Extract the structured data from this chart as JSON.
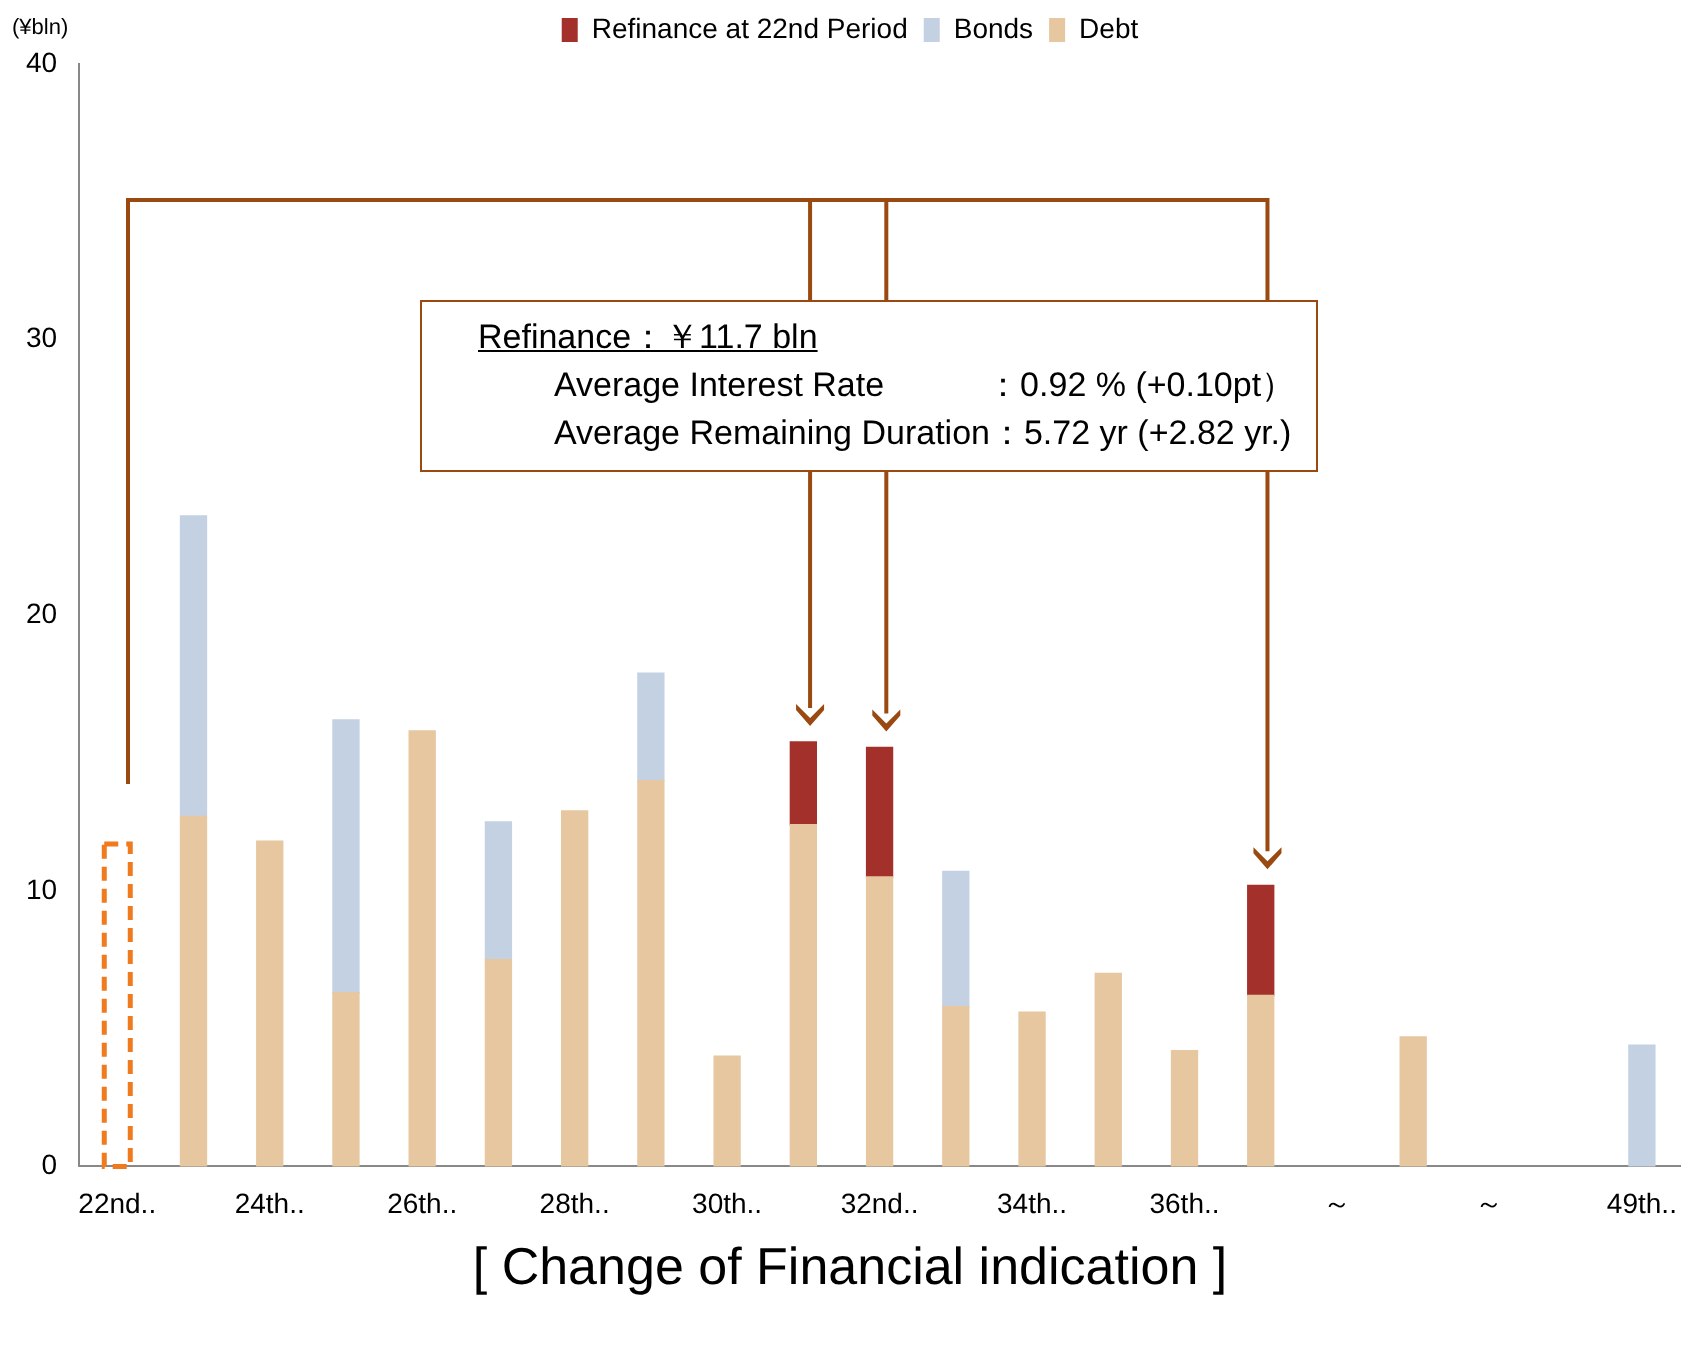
{
  "chart_data": {
    "type": "bar",
    "stacked": true,
    "ylabel": "(¥bln)",
    "xlabel": "[ Change of Financial indication ]",
    "categories": [
      "22nd..",
      null,
      "24th..",
      null,
      "26th..",
      null,
      "28th..",
      null,
      "30th..",
      null,
      "32nd..",
      null,
      "34th..",
      null,
      "36th..",
      null,
      "～",
      null,
      "～",
      null,
      "49th.."
    ],
    "series": [
      {
        "name": "Debt",
        "color": "#e6c7a0",
        "values": [
          null,
          12.7,
          11.8,
          6.3,
          15.8,
          7.5,
          12.9,
          14.0,
          4.0,
          12.4,
          10.5,
          5.8,
          5.6,
          7.0,
          4.2,
          6.2,
          null,
          4.7,
          null,
          null,
          null
        ]
      },
      {
        "name": "Bonds",
        "color": "#c3d1e2",
        "values": [
          null,
          10.9,
          null,
          9.9,
          null,
          5.0,
          null,
          3.9,
          null,
          null,
          null,
          4.9,
          null,
          null,
          null,
          null,
          null,
          null,
          null,
          null,
          4.4
        ]
      },
      {
        "name": "Refinance at 22nd Period",
        "color": "#a3302b",
        "values": [
          null,
          null,
          null,
          null,
          null,
          null,
          null,
          null,
          null,
          3.0,
          4.7,
          null,
          null,
          null,
          null,
          4.0,
          null,
          null,
          null,
          null,
          null
        ]
      },
      {
        "color": "#f07a1e",
        "line_style": "dashed",
        "values": [
          11.7,
          null,
          null,
          null,
          null,
          null,
          null,
          null,
          null,
          null,
          null,
          null,
          null,
          null,
          null,
          null,
          null,
          null,
          null,
          null,
          null
        ]
      }
    ],
    "ylim": [
      0,
      40
    ],
    "yticks": [
      0,
      10,
      20,
      30,
      40
    ],
    "grid": false,
    "legend": "top",
    "annotations": [
      "Refinance：￥11.7 bln",
      "Average Interest Rate　　　：0.92 % (+0.10pt）",
      "Average Remaining Duration：5.72 yr (+2.82 yr.)"
    ]
  }
}
